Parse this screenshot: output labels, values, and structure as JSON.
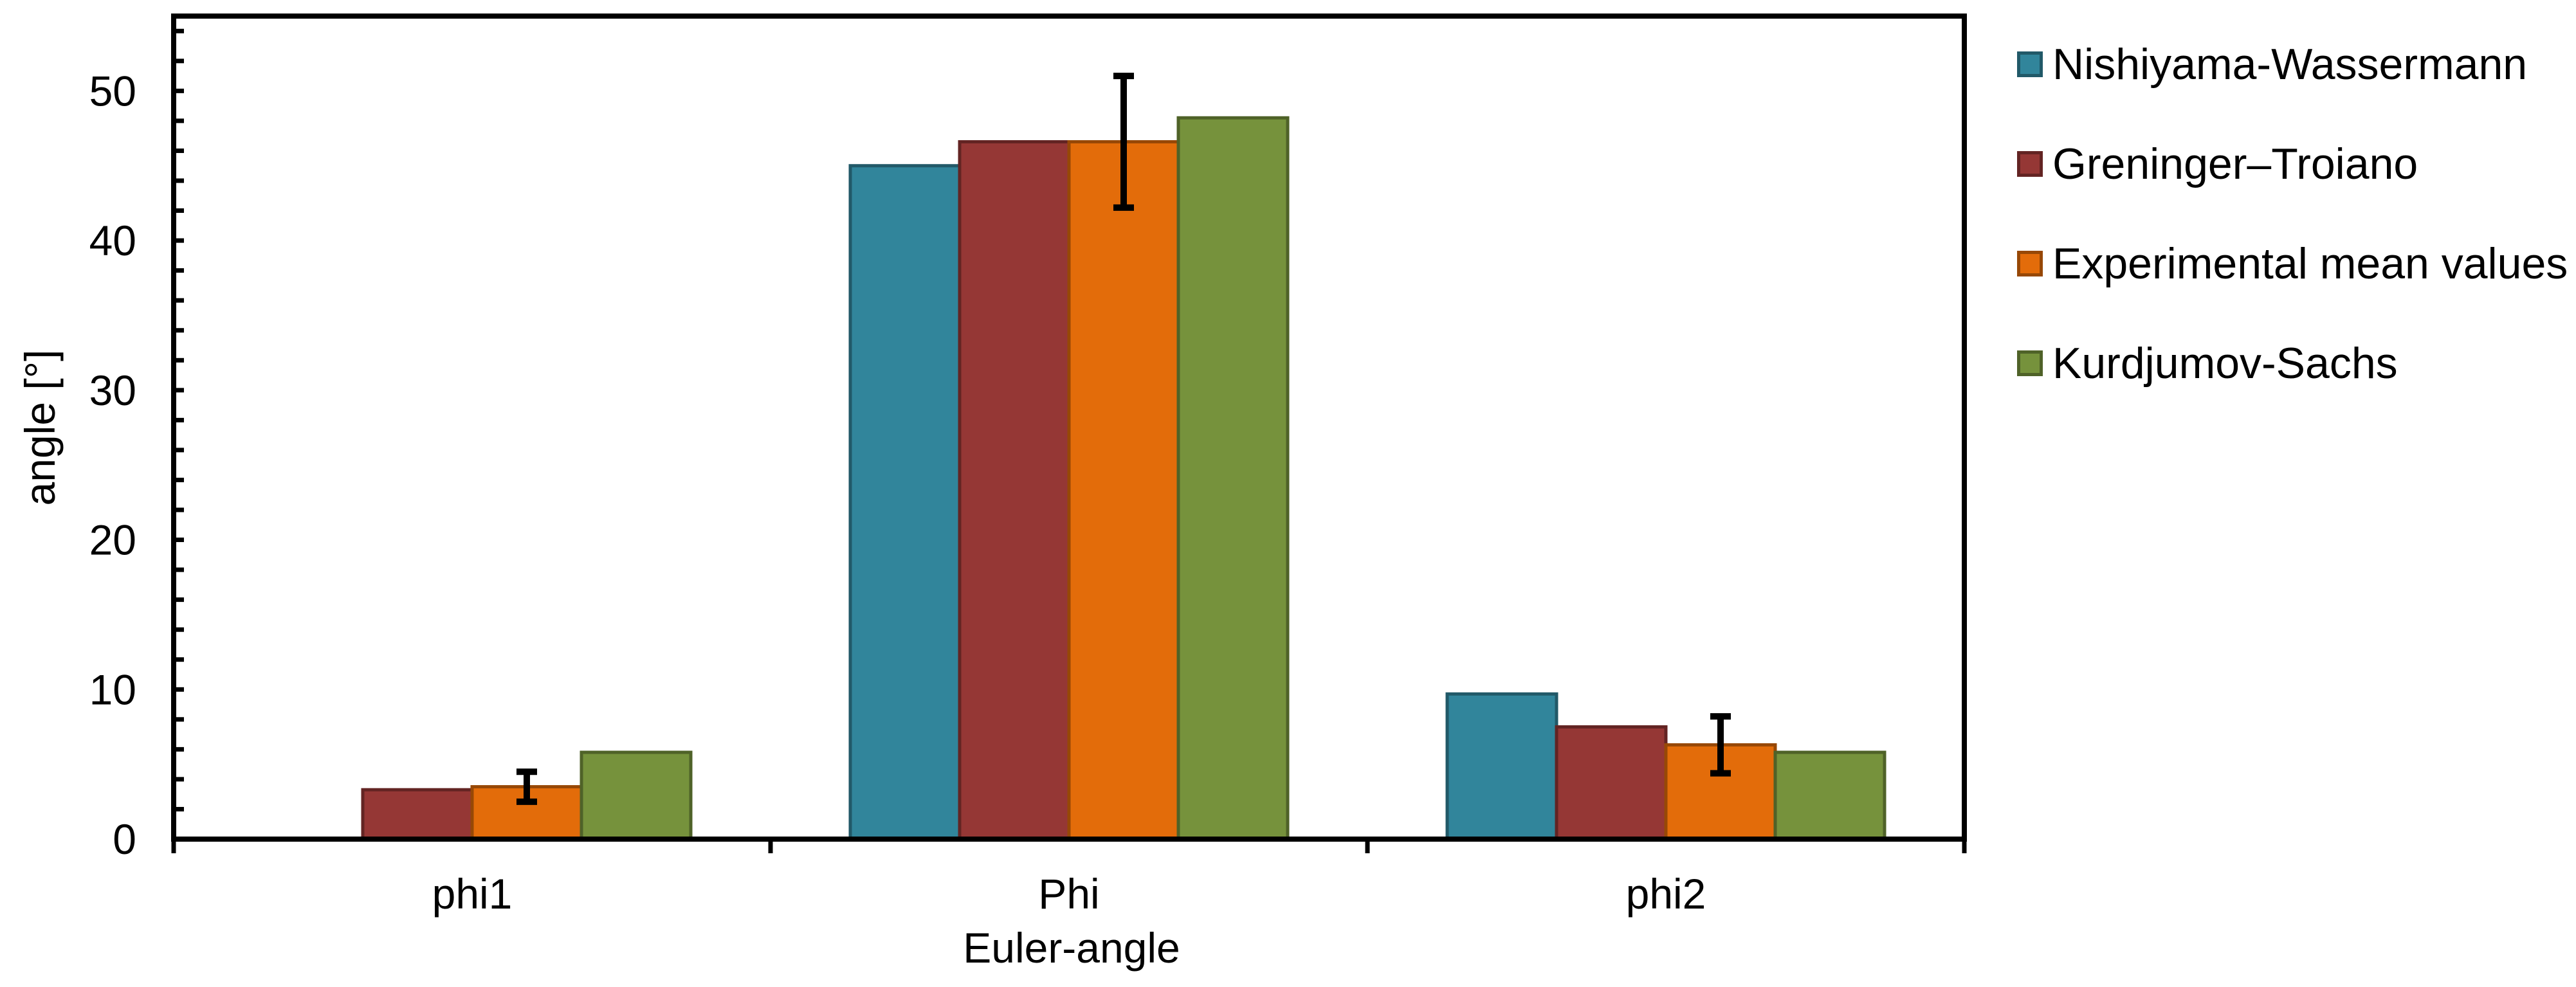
{
  "chart_data": {
    "type": "bar",
    "title": "",
    "xlabel": "Euler-angle",
    "ylabel": "angle [°]",
    "categories": [
      "phi1",
      "Phi",
      "phi2"
    ],
    "series": [
      {
        "name": "Nishiyama-Wassermann",
        "color": "#31859B",
        "border": "#215968",
        "values": [
          0,
          45.0,
          9.7
        ]
      },
      {
        "name": "Greninger–Troiano",
        "color": "#953735",
        "border": "#632423",
        "values": [
          3.3,
          46.6,
          7.5
        ]
      },
      {
        "name": "Experimental mean values",
        "color": "#E36C0A",
        "border": "#974806",
        "values": [
          3.5,
          46.6,
          6.3
        ]
      },
      {
        "name": "Kurdjumov-Sachs",
        "color": "#76923C",
        "border": "#4F6228",
        "values": [
          5.8,
          48.2,
          5.8
        ]
      }
    ],
    "error_bars": {
      "series_index": 2,
      "half_ranges": [
        1.0,
        4.4,
        1.9
      ],
      "color": "#000000"
    },
    "y_axis": {
      "min": 0,
      "max": 55,
      "major_step": 10,
      "minor_step": 2,
      "tick_labels": [
        "0",
        "10",
        "20",
        "30",
        "40",
        "50"
      ]
    },
    "x_axis": {
      "boundary_ticks": 4
    },
    "legend_position": "right",
    "grid": false,
    "frame_color": "#000000",
    "background": "#FFFFFF"
  }
}
